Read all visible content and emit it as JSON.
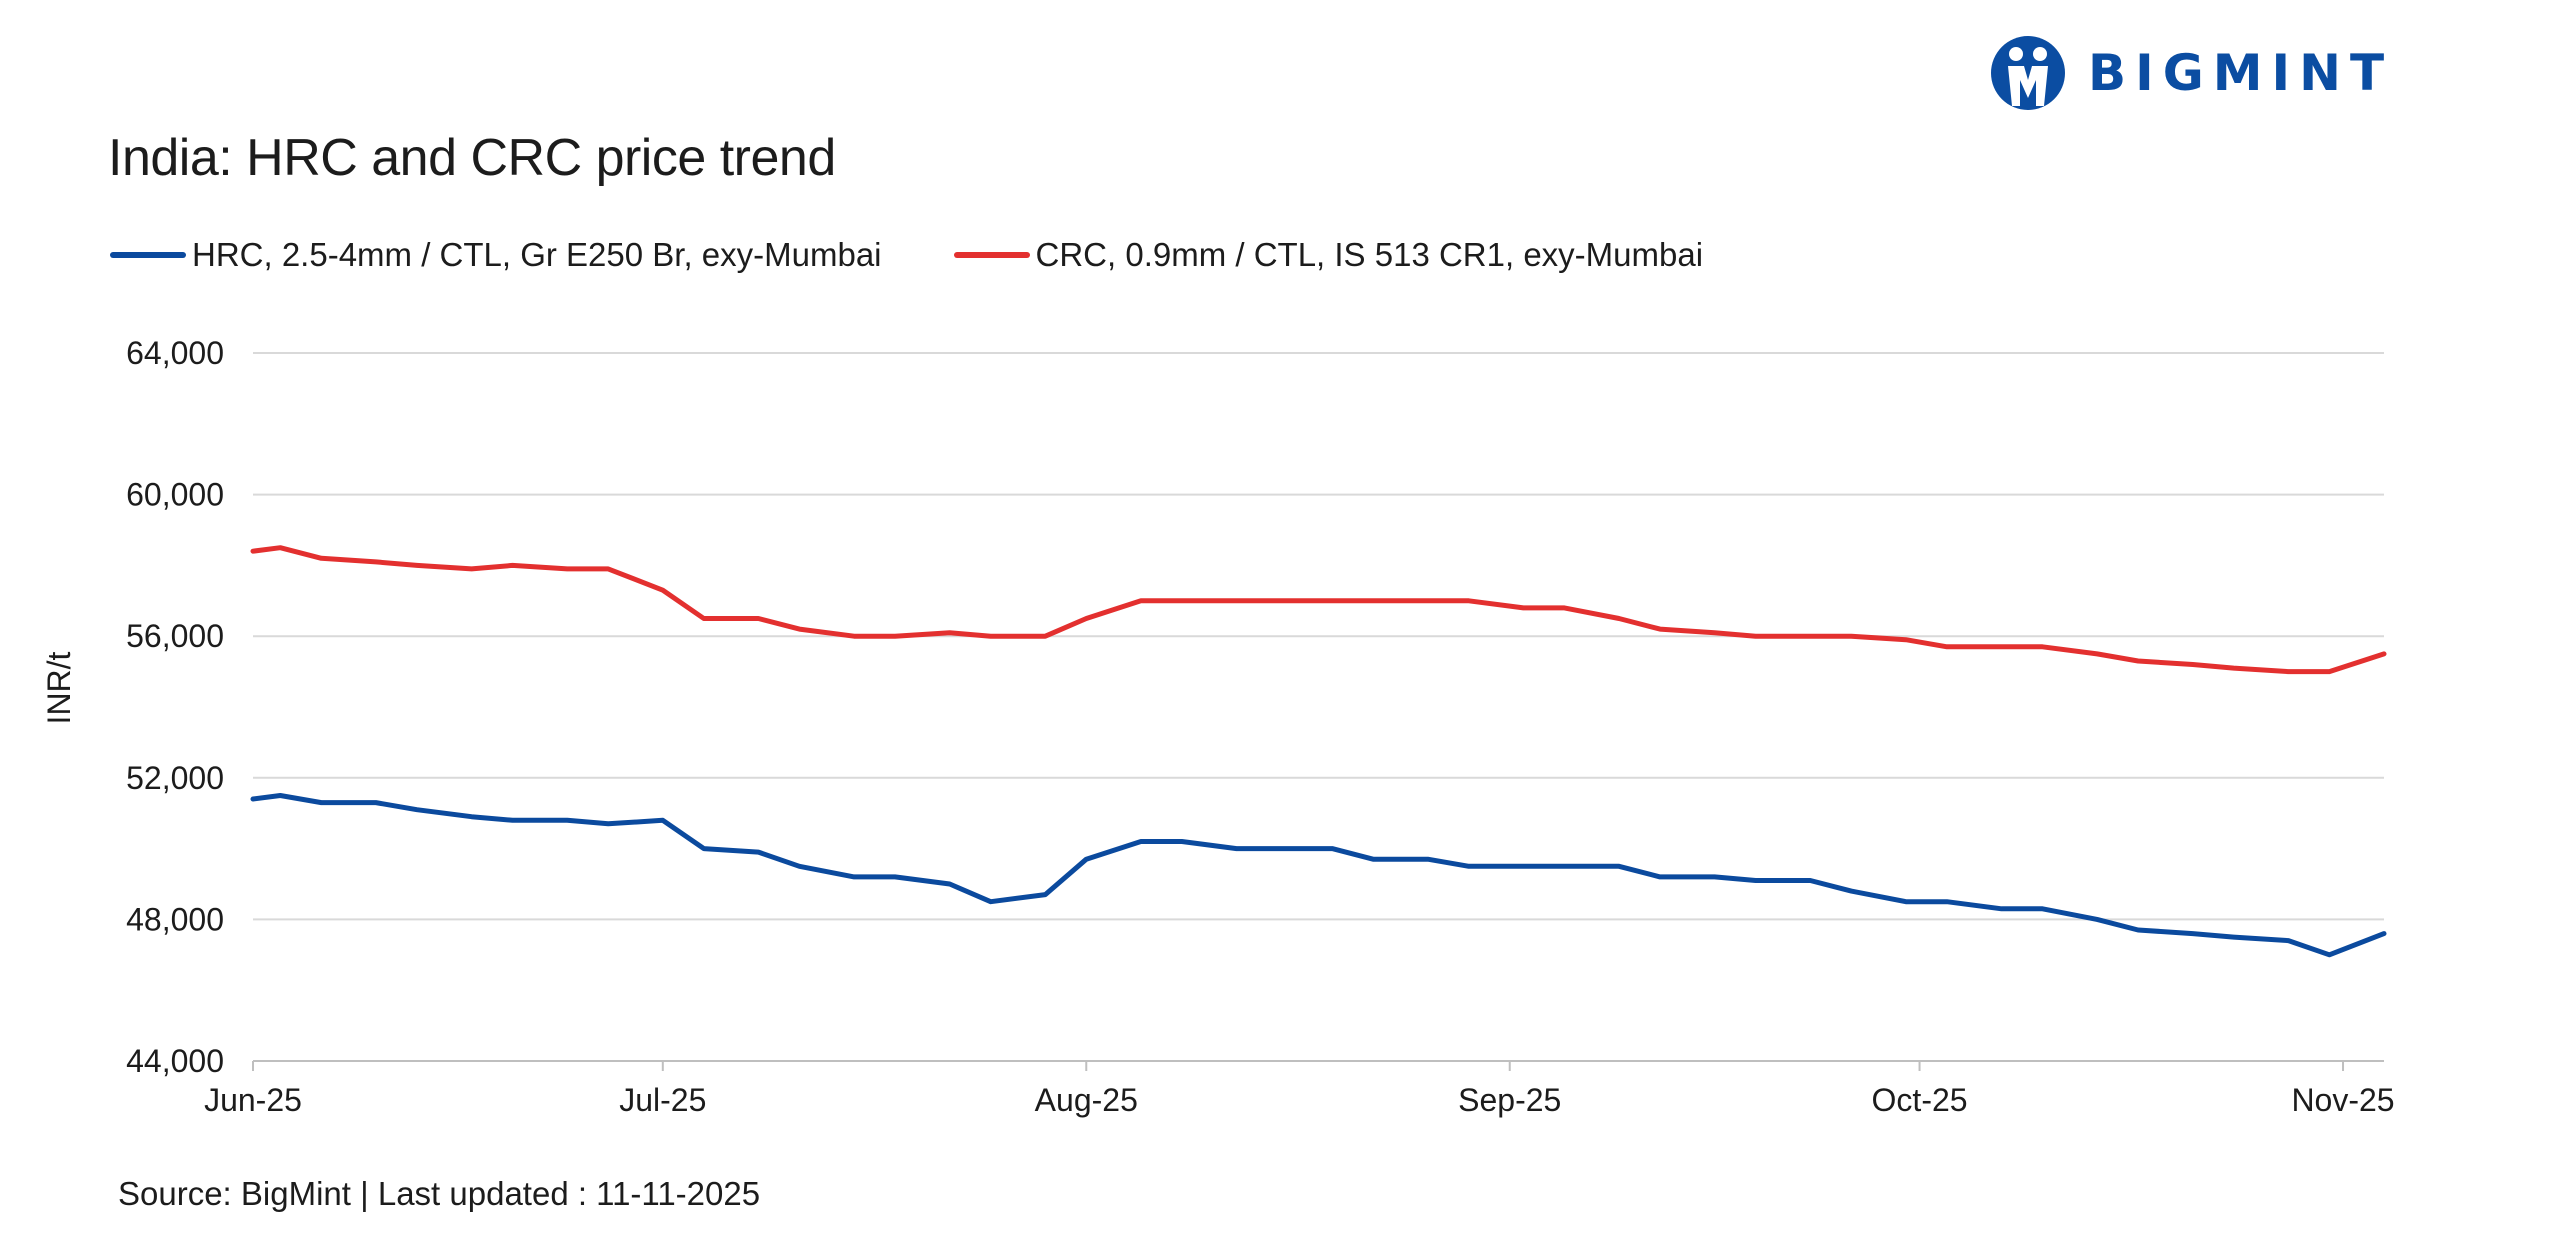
{
  "brand": {
    "name": "BIGMINT",
    "color": "#0b4da2"
  },
  "source_text": "Source: BigMint | Last updated : 11-11-2025",
  "chart_data": {
    "type": "line",
    "title": "India: HRC and CRC price trend",
    "xlabel": "",
    "ylabel": "INR/t",
    "ylim": [
      44000,
      64000
    ],
    "y_ticks": [
      44000,
      48000,
      52000,
      56000,
      60000,
      64000
    ],
    "y_tick_labels": [
      "44,000",
      "48,000",
      "52,000",
      "56,000",
      "60,000",
      "64,000"
    ],
    "x_ticks": [
      "2025-06-01",
      "2025-07-01",
      "2025-08-01",
      "2025-09-01",
      "2025-10-01",
      "2025-11-01"
    ],
    "x_tick_labels": [
      "Jun-25",
      "Jul-25",
      "Aug-25",
      "Sep-25",
      "Oct-25",
      "Nov-25"
    ],
    "xlim": [
      "2025-06-01",
      "2025-11-04"
    ],
    "grid": true,
    "legend_position": "top-left",
    "series": [
      {
        "name": "HRC, 2.5-4mm / CTL, Gr E250 Br, exy-Mumbai",
        "color": "#0b4a9e",
        "x": [
          "2025-06-01",
          "2025-06-03",
          "2025-06-06",
          "2025-06-10",
          "2025-06-13",
          "2025-06-17",
          "2025-06-20",
          "2025-06-24",
          "2025-06-27",
          "2025-07-01",
          "2025-07-04",
          "2025-07-08",
          "2025-07-11",
          "2025-07-15",
          "2025-07-18",
          "2025-07-22",
          "2025-07-25",
          "2025-07-29",
          "2025-08-01",
          "2025-08-05",
          "2025-08-08",
          "2025-08-12",
          "2025-08-15",
          "2025-08-19",
          "2025-08-22",
          "2025-08-26",
          "2025-08-29",
          "2025-09-02",
          "2025-09-05",
          "2025-09-09",
          "2025-09-12",
          "2025-09-16",
          "2025-09-19",
          "2025-09-23",
          "2025-09-26",
          "2025-09-30",
          "2025-10-03",
          "2025-10-07",
          "2025-10-10",
          "2025-10-14",
          "2025-10-17",
          "2025-10-21",
          "2025-10-24",
          "2025-10-28",
          "2025-10-31",
          "2025-11-04"
        ],
        "values": [
          51400,
          51500,
          51300,
          51300,
          51100,
          50900,
          50800,
          50800,
          50700,
          50800,
          50000,
          49900,
          49500,
          49200,
          49200,
          49000,
          48500,
          48700,
          49700,
          50200,
          50200,
          50000,
          50000,
          50000,
          49700,
          49700,
          49500,
          49500,
          49500,
          49500,
          49200,
          49200,
          49100,
          49100,
          48800,
          48500,
          48500,
          48300,
          48300,
          48000,
          47700,
          47600,
          47500,
          47400,
          47000,
          47600
        ]
      },
      {
        "name": "CRC, 0.9mm / CTL, IS 513 CR1, exy-Mumbai",
        "color": "#e3302f",
        "x": [
          "2025-06-01",
          "2025-06-03",
          "2025-06-06",
          "2025-06-10",
          "2025-06-13",
          "2025-06-17",
          "2025-06-20",
          "2025-06-24",
          "2025-06-27",
          "2025-07-01",
          "2025-07-04",
          "2025-07-08",
          "2025-07-11",
          "2025-07-15",
          "2025-07-18",
          "2025-07-22",
          "2025-07-25",
          "2025-07-29",
          "2025-08-01",
          "2025-08-05",
          "2025-08-08",
          "2025-08-12",
          "2025-08-15",
          "2025-08-19",
          "2025-08-22",
          "2025-08-26",
          "2025-08-29",
          "2025-09-02",
          "2025-09-05",
          "2025-09-09",
          "2025-09-12",
          "2025-09-16",
          "2025-09-19",
          "2025-09-23",
          "2025-09-26",
          "2025-09-30",
          "2025-10-03",
          "2025-10-07",
          "2025-10-10",
          "2025-10-14",
          "2025-10-17",
          "2025-10-21",
          "2025-10-24",
          "2025-10-28",
          "2025-10-31",
          "2025-11-04"
        ],
        "values": [
          58400,
          58500,
          58200,
          58100,
          58000,
          57900,
          58000,
          57900,
          57900,
          57300,
          56500,
          56500,
          56200,
          56000,
          56000,
          56100,
          56000,
          56000,
          56500,
          57000,
          57000,
          57000,
          57000,
          57000,
          57000,
          57000,
          57000,
          56800,
          56800,
          56500,
          56200,
          56100,
          56000,
          56000,
          56000,
          55900,
          55700,
          55700,
          55700,
          55500,
          55300,
          55200,
          55100,
          55000,
          55000,
          55500
        ]
      }
    ]
  }
}
